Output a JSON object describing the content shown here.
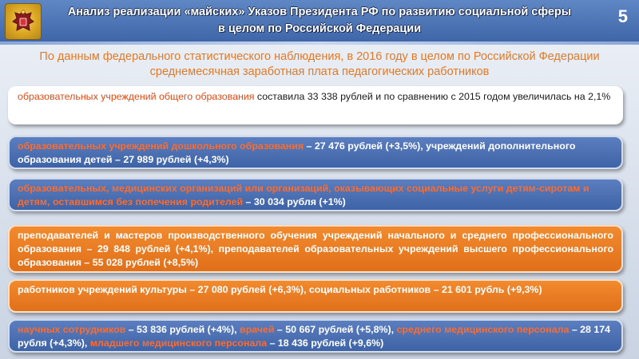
{
  "header": {
    "title_line1": "Анализ реализации «майских» Указов Президента РФ по развитию социальной сферы",
    "title_line2": "в целом по Российской Федерации",
    "slide_number": "5",
    "emblem_icon": "coat-of-arms-icon"
  },
  "intro": "По данным федерального статистического наблюдения, в 2016 году в целом по Российской Федерации среднемесячная заработная плата педагогических работников",
  "items": [
    {
      "hl": "образовательных учреждений общего образования",
      "rest": " составила 33 338 рублей и по сравнению с 2015 годом увеличилась на 2,1%"
    },
    {
      "hl1": "образовательных учреждений дошкольного образования",
      "t1": " – 27 476 рублей (+3,5%), учреждений дополнительного образования детей – 27 989 рублей (+4,3%)"
    },
    {
      "hl1": "образовательных, медицинских организаций или организаций, оказывающих социальные услуги детям-сиротам и детям, оставшимся без попечения родителей",
      "t1": " – 30 034 рубля (+1%)"
    },
    {
      "hl1": "преподавателей и мастеров производственного обучения учреждений начального и среднего профессионального образования",
      "t1": " – 29 848 рублей (+4,1%), ",
      "hl2": "преподавателей образовательных учреждений высшего профессионального образования",
      "t2": " – 55 028 рублей (+8,5%)"
    },
    {
      "hl1": "работников учреждений культуры",
      "t1": " – 27 080 рублей (+6,3%), ",
      "hl2": "социальных работников",
      "t2": " – 21 601 рубль (+9,3%)"
    },
    {
      "hl1": "научных сотрудников",
      "t1": " – 53 836 рублей (+4%), ",
      "hl2": "врачей",
      "t2": " – 50 667 рублей (+5,8%), ",
      "hl3": "среднего медицинского персонала",
      "t3": " – 28 174 рубля (+4,3%), ",
      "hl4": "младшего медицинского персонала",
      "t4": " – 18 436 рублей (+9,6%)"
    }
  ]
}
